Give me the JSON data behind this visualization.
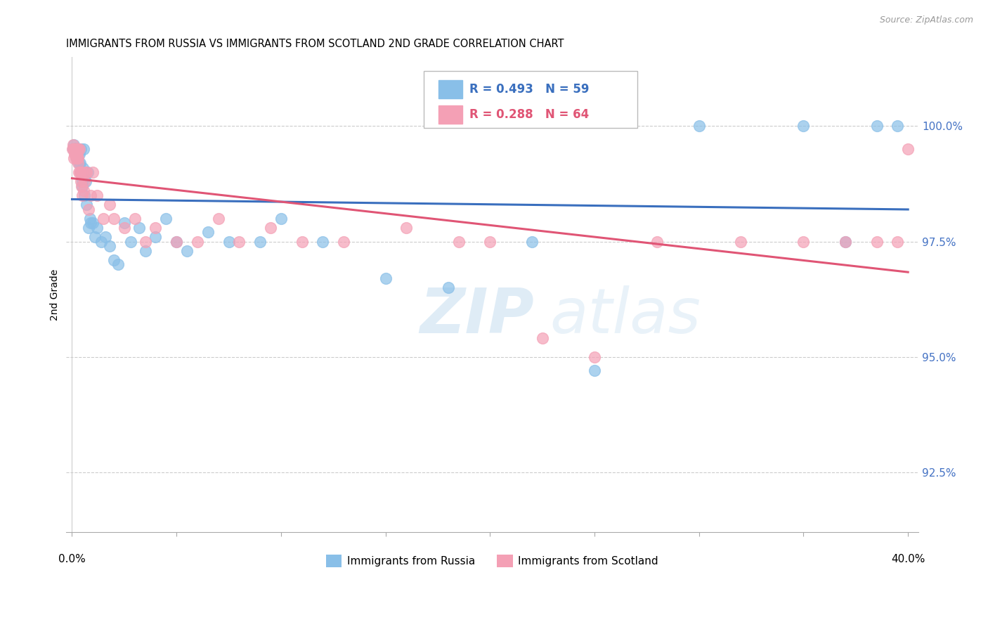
{
  "title": "IMMIGRANTS FROM RUSSIA VS IMMIGRANTS FROM SCOTLAND 2ND GRADE CORRELATION CHART",
  "source": "Source: ZipAtlas.com",
  "ylabel": "2nd Grade",
  "y_ticks": [
    92.5,
    95.0,
    97.5,
    100.0
  ],
  "xlim": [
    -0.3,
    40.5
  ],
  "ylim": [
    91.2,
    101.5
  ],
  "russia_color": "#89bfe8",
  "scotland_color": "#f4a0b5",
  "russia_R": 0.493,
  "russia_N": 59,
  "scotland_R": 0.288,
  "scotland_N": 64,
  "russia_line_color": "#3a6fbe",
  "scotland_line_color": "#e05575",
  "watermark_zip": "ZIP",
  "watermark_atlas": "atlas",
  "russia_x": [
    0.05,
    0.08,
    0.1,
    0.12,
    0.15,
    0.18,
    0.2,
    0.22,
    0.25,
    0.28,
    0.3,
    0.32,
    0.35,
    0.38,
    0.4,
    0.42,
    0.45,
    0.48,
    0.5,
    0.52,
    0.55,
    0.58,
    0.6,
    0.65,
    0.7,
    0.75,
    0.8,
    0.85,
    0.9,
    1.0,
    1.1,
    1.2,
    1.4,
    1.6,
    1.8,
    2.0,
    2.2,
    2.5,
    2.8,
    3.2,
    3.5,
    4.0,
    4.5,
    5.0,
    5.5,
    6.5,
    7.5,
    9.0,
    10.0,
    12.0,
    15.0,
    18.0,
    22.0,
    25.0,
    30.0,
    35.0,
    37.0,
    38.5,
    39.5
  ],
  "russia_y": [
    99.5,
    99.5,
    99.6,
    99.5,
    99.5,
    99.4,
    99.5,
    99.3,
    99.3,
    99.5,
    99.4,
    99.2,
    99.4,
    99.2,
    99.0,
    99.5,
    99.0,
    98.8,
    98.7,
    99.1,
    99.5,
    98.5,
    98.9,
    98.8,
    98.3,
    99.0,
    97.8,
    98.0,
    97.9,
    97.9,
    97.6,
    97.8,
    97.5,
    97.6,
    97.4,
    97.1,
    97.0,
    97.9,
    97.5,
    97.8,
    97.3,
    97.6,
    98.0,
    97.5,
    97.3,
    97.7,
    97.5,
    97.5,
    98.0,
    97.5,
    96.7,
    96.5,
    97.5,
    94.7,
    100.0,
    100.0,
    97.5,
    100.0,
    100.0
  ],
  "scotland_x": [
    0.03,
    0.05,
    0.07,
    0.08,
    0.1,
    0.1,
    0.12,
    0.13,
    0.15,
    0.16,
    0.18,
    0.18,
    0.2,
    0.2,
    0.22,
    0.23,
    0.25,
    0.25,
    0.27,
    0.28,
    0.3,
    0.3,
    0.33,
    0.35,
    0.38,
    0.4,
    0.43,
    0.45,
    0.48,
    0.5,
    0.55,
    0.6,
    0.65,
    0.7,
    0.8,
    0.9,
    1.0,
    1.2,
    1.5,
    1.8,
    2.0,
    2.5,
    3.0,
    3.5,
    4.0,
    5.0,
    6.0,
    7.0,
    8.0,
    9.5,
    11.0,
    13.0,
    16.0,
    18.5,
    20.0,
    22.5,
    25.0,
    28.0,
    32.0,
    35.0,
    37.0,
    38.5,
    39.5,
    40.0
  ],
  "scotland_y": [
    99.5,
    99.6,
    99.5,
    99.5,
    99.5,
    99.3,
    99.5,
    99.4,
    99.5,
    99.4,
    99.5,
    99.3,
    99.5,
    99.4,
    99.5,
    99.5,
    99.3,
    99.4,
    99.3,
    99.5,
    99.2,
    99.5,
    99.0,
    99.5,
    99.0,
    99.0,
    98.8,
    98.7,
    98.5,
    99.0,
    98.6,
    98.8,
    99.0,
    99.0,
    98.2,
    98.5,
    99.0,
    98.5,
    98.0,
    98.3,
    98.0,
    97.8,
    98.0,
    97.5,
    97.8,
    97.5,
    97.5,
    98.0,
    97.5,
    97.8,
    97.5,
    97.5,
    97.8,
    97.5,
    97.5,
    95.4,
    95.0,
    97.5,
    97.5,
    97.5,
    97.5,
    97.5,
    97.5,
    99.5
  ]
}
